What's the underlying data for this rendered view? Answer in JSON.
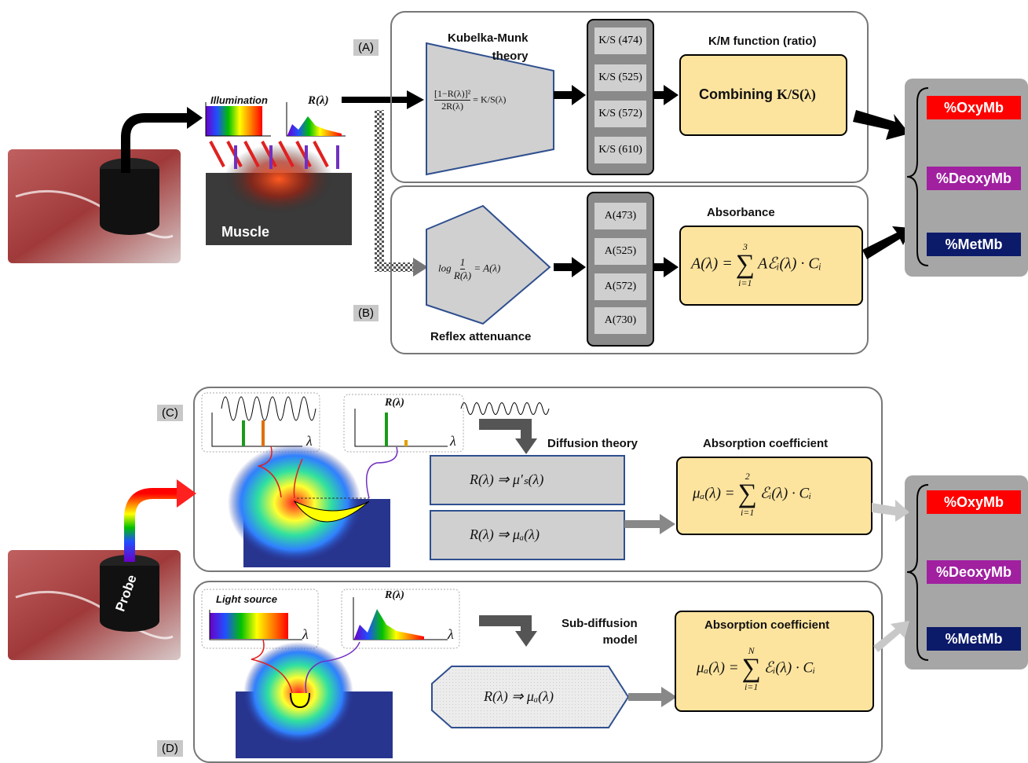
{
  "top_left": {
    "illumination": "Illumination",
    "reflectance": "R(λ)",
    "muscle": "Muscle"
  },
  "panel_a": {
    "label": "(A)",
    "theory": "Kubelka-Munk\ntheory",
    "formula": {
      "numerator": "[1−R(λ)]²",
      "denominator": "2R(λ)",
      "rhs": "= K/S(λ)"
    },
    "outputs": [
      "K/S (474)",
      "K/S (525)",
      "K/S (572)",
      "K/S (610)"
    ],
    "function_title": "K/M function (ratio)",
    "function_word": "Combining",
    "function_expr": "K/S(λ)"
  },
  "panel_b": {
    "label": "(B)",
    "formula": {
      "log": "log",
      "numerator": "1",
      "denominator": "R(λ)",
      "rhs": "= A(λ)"
    },
    "method": "Reflex attenuance",
    "outputs": [
      "A(473)",
      "A(525)",
      "A(572)",
      "A(730)"
    ],
    "function_title": "Absorbance",
    "function": {
      "lhs": "A(λ) =",
      "upper": "3",
      "sigma": "∑",
      "lower": "i=1",
      "rhs": "Aℰᵢ(λ) · Cᵢ"
    }
  },
  "results_top": [
    "%OxyMb",
    "%DeoxyMb",
    "%MetMb"
  ],
  "panel_c": {
    "label": "(C)",
    "source_axis": "λ",
    "reflectance": "R(λ)",
    "reflectance_axis": "λ",
    "method": "Diffusion theory",
    "step1": "R(λ) ⇒ μ′ₛ(λ)",
    "step2": "R(λ) ⇒ μₐ(λ)",
    "function_title": "Absorption coefficient",
    "function": {
      "lhs": "μₐ(λ) =",
      "upper": "2",
      "sigma": "∑",
      "lower": "i=1",
      "rhs": "ℰᵢ(λ) · Cᵢ"
    }
  },
  "panel_d": {
    "label": "(D)",
    "source": "Light source",
    "source_axis": "λ",
    "reflectance": "R(λ)",
    "reflectance_axis": "λ",
    "method": "Sub-diffusion\nmodel",
    "step": "R(λ) ⇒ μₐ(λ)",
    "function_title": "Absorption coefficient",
    "function": {
      "lhs": "μₐ(λ) =",
      "upper": "N",
      "sigma": "∑",
      "lower": "i=1",
      "rhs": "ℰᵢ(λ) · Cᵢ"
    }
  },
  "probe": "Probe",
  "results_bottom": [
    "%OxyMb",
    "%DeoxyMb",
    "%MetMb"
  ]
}
